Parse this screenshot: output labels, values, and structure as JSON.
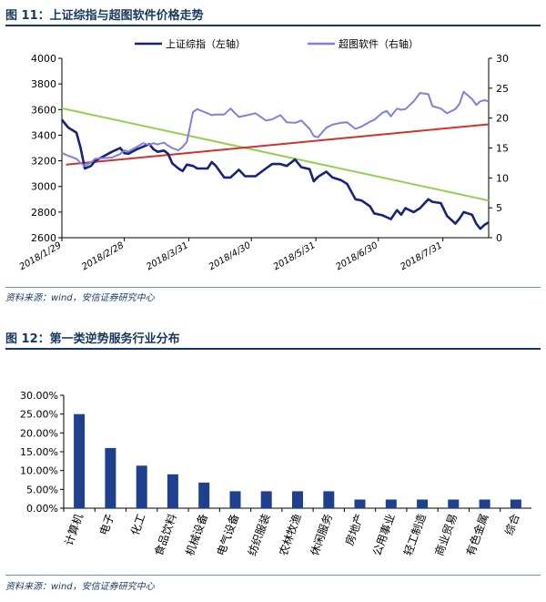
{
  "figure11": {
    "title": "图 11：上证综指与超图软件价格走势",
    "source": "资料来源：wind，安信证券研究中心"
  },
  "figure12": {
    "title": "图 12：第一类逆势服务行业分布",
    "source": "资料来源：wind，安信证券研究中心"
  },
  "chart_data": [
    {
      "type": "line",
      "legend_position": "top",
      "grid": false,
      "x_ticks": [
        "2018/1/29",
        "2018/2/28",
        "2018/3/31",
        "2018/4/30",
        "2018/5/31",
        "2018/6/30",
        "2018/7/31"
      ],
      "x_range": [
        "2018-01-29",
        "2018-08-22"
      ],
      "y_left_ticks": [
        "2600",
        "2800",
        "3000",
        "3200",
        "3400",
        "3600",
        "3800",
        "4000"
      ],
      "y_left_range": [
        2600,
        4000
      ],
      "y_right_ticks": [
        "0",
        "5",
        "10",
        "15",
        "20",
        "25",
        "30"
      ],
      "y_right_range": [
        0,
        30
      ],
      "series": [
        {
          "name": "上证综指（左轴）",
          "axis": "left",
          "color": "#17237a",
          "points": [
            [
              "2018-01-29",
              3520
            ],
            [
              "2018-02-01",
              3460
            ],
            [
              "2018-02-05",
              3420
            ],
            [
              "2018-02-07",
              3300
            ],
            [
              "2018-02-09",
              3140
            ],
            [
              "2018-02-12",
              3160
            ],
            [
              "2018-02-14",
              3200
            ],
            [
              "2018-02-22",
              3270
            ],
            [
              "2018-02-26",
              3300
            ],
            [
              "2018-02-28",
              3260
            ],
            [
              "2018-03-02",
              3255
            ],
            [
              "2018-03-06",
              3290
            ],
            [
              "2018-03-09",
              3310
            ],
            [
              "2018-03-12",
              3330
            ],
            [
              "2018-03-14",
              3290
            ],
            [
              "2018-03-16",
              3270
            ],
            [
              "2018-03-19",
              3280
            ],
            [
              "2018-03-21",
              3255
            ],
            [
              "2018-03-23",
              3180
            ],
            [
              "2018-03-26",
              3140
            ],
            [
              "2018-03-28",
              3120
            ],
            [
              "2018-03-30",
              3170
            ],
            [
              "2018-04-02",
              3160
            ],
            [
              "2018-04-04",
              3140
            ],
            [
              "2018-04-09",
              3140
            ],
            [
              "2018-04-11",
              3190
            ],
            [
              "2018-04-13",
              3160
            ],
            [
              "2018-04-17",
              3070
            ],
            [
              "2018-04-20",
              3070
            ],
            [
              "2018-04-24",
              3130
            ],
            [
              "2018-04-27",
              3080
            ],
            [
              "2018-05-02",
              3080
            ],
            [
              "2018-05-07",
              3140
            ],
            [
              "2018-05-10",
              3175
            ],
            [
              "2018-05-14",
              3175
            ],
            [
              "2018-05-17",
              3160
            ],
            [
              "2018-05-21",
              3210
            ],
            [
              "2018-05-24",
              3150
            ],
            [
              "2018-05-28",
              3135
            ],
            [
              "2018-05-30",
              3040
            ],
            [
              "2018-06-01",
              3075
            ],
            [
              "2018-06-05",
              3115
            ],
            [
              "2018-06-08",
              3070
            ],
            [
              "2018-06-12",
              3050
            ],
            [
              "2018-06-15",
              3020
            ],
            [
              "2018-06-19",
              2900
            ],
            [
              "2018-06-22",
              2890
            ],
            [
              "2018-06-26",
              2845
            ],
            [
              "2018-06-28",
              2790
            ],
            [
              "2018-07-02",
              2775
            ],
            [
              "2018-07-04",
              2760
            ],
            [
              "2018-07-06",
              2745
            ],
            [
              "2018-07-09",
              2815
            ],
            [
              "2018-07-11",
              2780
            ],
            [
              "2018-07-13",
              2830
            ],
            [
              "2018-07-17",
              2800
            ],
            [
              "2018-07-20",
              2830
            ],
            [
              "2018-07-24",
              2900
            ],
            [
              "2018-07-26",
              2880
            ],
            [
              "2018-07-30",
              2870
            ],
            [
              "2018-08-02",
              2770
            ],
            [
              "2018-08-06",
              2710
            ],
            [
              "2018-08-08",
              2750
            ],
            [
              "2018-08-10",
              2800
            ],
            [
              "2018-08-14",
              2780
            ],
            [
              "2018-08-16",
              2710
            ],
            [
              "2018-08-18",
              2670
            ],
            [
              "2018-08-20",
              2700
            ],
            [
              "2018-08-22",
              2720
            ]
          ]
        },
        {
          "name": "超图软件（右轴）",
          "axis": "right",
          "color": "#8080e0",
          "points": [
            [
              "2018-01-29",
              14.2
            ],
            [
              "2018-02-01",
              13.7
            ],
            [
              "2018-02-05",
              13.2
            ],
            [
              "2018-02-07",
              12.5
            ],
            [
              "2018-02-09",
              12.0
            ],
            [
              "2018-02-12",
              12.6
            ],
            [
              "2018-02-14",
              13.2
            ],
            [
              "2018-02-22",
              13.4
            ],
            [
              "2018-02-26",
              14.0
            ],
            [
              "2018-02-28",
              14.6
            ],
            [
              "2018-03-02",
              14.4
            ],
            [
              "2018-03-06",
              15.2
            ],
            [
              "2018-03-09",
              15.8
            ],
            [
              "2018-03-12",
              15.5
            ],
            [
              "2018-03-14",
              15.8
            ],
            [
              "2018-03-16",
              15.6
            ],
            [
              "2018-03-19",
              15.9
            ],
            [
              "2018-03-21",
              15.4
            ],
            [
              "2018-03-23",
              15.0
            ],
            [
              "2018-03-26",
              14.6
            ],
            [
              "2018-03-28",
              15.2
            ],
            [
              "2018-03-30",
              16.0
            ],
            [
              "2018-04-02",
              21.0
            ],
            [
              "2018-04-04",
              21.5
            ],
            [
              "2018-04-09",
              20.8
            ],
            [
              "2018-04-11",
              20.5
            ],
            [
              "2018-04-13",
              20.6
            ],
            [
              "2018-04-17",
              20.6
            ],
            [
              "2018-04-20",
              21.6
            ],
            [
              "2018-04-24",
              20.2
            ],
            [
              "2018-04-27",
              20.4
            ],
            [
              "2018-05-02",
              20.8
            ],
            [
              "2018-05-07",
              19.6
            ],
            [
              "2018-05-10",
              19.8
            ],
            [
              "2018-05-14",
              20.5
            ],
            [
              "2018-05-17",
              19.3
            ],
            [
              "2018-05-21",
              19.2
            ],
            [
              "2018-05-24",
              19.6
            ],
            [
              "2018-05-28",
              18.2
            ],
            [
              "2018-05-30",
              17.0
            ],
            [
              "2018-06-01",
              16.8
            ],
            [
              "2018-06-05",
              18.4
            ],
            [
              "2018-06-08",
              18.9
            ],
            [
              "2018-06-12",
              19.2
            ],
            [
              "2018-06-15",
              19.3
            ],
            [
              "2018-06-19",
              18.2
            ],
            [
              "2018-06-22",
              18.6
            ],
            [
              "2018-06-26",
              19.4
            ],
            [
              "2018-06-28",
              19.7
            ],
            [
              "2018-07-02",
              20.9
            ],
            [
              "2018-07-04",
              21.2
            ],
            [
              "2018-07-06",
              20.3
            ],
            [
              "2018-07-09",
              21.6
            ],
            [
              "2018-07-11",
              21.4
            ],
            [
              "2018-07-13",
              21.5
            ],
            [
              "2018-07-17",
              22.8
            ],
            [
              "2018-07-20",
              24.2
            ],
            [
              "2018-07-24",
              24.0
            ],
            [
              "2018-07-26",
              22.0
            ],
            [
              "2018-07-30",
              21.6
            ],
            [
              "2018-08-02",
              20.8
            ],
            [
              "2018-08-06",
              21.5
            ],
            [
              "2018-08-08",
              22.4
            ],
            [
              "2018-08-10",
              24.4
            ],
            [
              "2018-08-14",
              23.2
            ],
            [
              "2018-08-16",
              22.2
            ],
            [
              "2018-08-18",
              22.8
            ],
            [
              "2018-08-20",
              23.0
            ],
            [
              "2018-08-22",
              22.8
            ]
          ]
        },
        {
          "axis": "left",
          "color": "#d0312d",
          "role": "trend",
          "points": [
            [
              "2018-01-31",
              3170
            ],
            [
              "2018-08-22",
              3485
            ]
          ]
        },
        {
          "axis": "left",
          "color": "#92d050",
          "role": "trend",
          "points": [
            [
              "2018-01-29",
              3610
            ],
            [
              "2018-08-22",
              2890
            ]
          ]
        }
      ]
    },
    {
      "type": "bar",
      "legend_position": "none",
      "grid": false,
      "color": "#1f3f8f",
      "categories": [
        "计算机",
        "电子",
        "化工",
        "食品饮料",
        "机械设备",
        "电气设备",
        "纺织服装",
        "农林牧渔",
        "休闲服务",
        "房地产",
        "公用事业",
        "轻工制造",
        "商业贸易",
        "有色金属",
        "综合"
      ],
      "values": [
        0.25,
        0.16,
        0.113,
        0.09,
        0.068,
        0.045,
        0.045,
        0.045,
        0.045,
        0.023,
        0.023,
        0.023,
        0.023,
        0.023,
        0.023
      ],
      "y_ticks": [
        "0.00%",
        "5.00%",
        "10.00%",
        "15.00%",
        "20.00%",
        "25.00%",
        "30.00%"
      ],
      "ylim": [
        0,
        0.3
      ]
    }
  ]
}
